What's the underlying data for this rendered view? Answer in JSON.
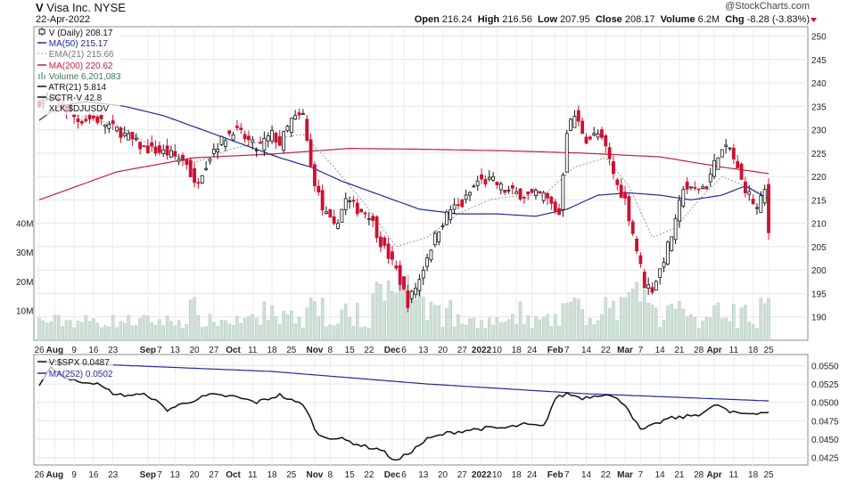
{
  "header": {
    "symbol": "V",
    "name": "Visa Inc.",
    "exchange": "NYSE",
    "date": "22-Apr-2022",
    "watermark": "@StockCharts.com",
    "stats": {
      "open_label": "Open",
      "open": "216.24",
      "high_label": "High",
      "high": "216.56",
      "low_label": "Low",
      "low": "207.95",
      "close_label": "Close",
      "close": "208.17",
      "volume_label": "Volume",
      "volume": "6.2M",
      "chg_label": "Chg",
      "chg": "-8.28 (-3.83%)"
    }
  },
  "colors": {
    "up": "#111111",
    "down": "#cc1133",
    "ma50": "#1f2a9a",
    "ema21": "#999999",
    "ma200": "#c0213a",
    "volume": "#cfe0d6",
    "volume_edge": "#9fbfae"
  },
  "legend": [
    {
      "text": "V (Daily) 208.17",
      "swatch": "candle"
    },
    {
      "text": "MA(50) 215.17",
      "swatch": "ma50"
    },
    {
      "text": "EMA(21) 215.66",
      "swatch": "ema21"
    },
    {
      "text": "MA(200) 220.62",
      "swatch": "ma200"
    },
    {
      "text": "Volume 6,201,083",
      "swatch": "volume"
    },
    {
      "text": "ATR(21) 5.814",
      "swatch": "black"
    },
    {
      "text": "SCTR-V 42.8",
      "swatch": "black"
    },
    {
      "text": "XLK:$DJUSDV",
      "swatch": "none"
    }
  ],
  "lower_legend": [
    {
      "text": "V:$SPX 0.0487",
      "swatch": "black"
    },
    {
      "text": "MA(252) 0.0502",
      "swatch": "ma50"
    }
  ],
  "x_axis_labels": [
    {
      "text": "26",
      "bar": 0,
      "bold": false
    },
    {
      "text": "Aug",
      "bar": 4,
      "bold": true
    },
    {
      "text": "9",
      "bar": 9,
      "bold": false
    },
    {
      "text": "16",
      "bar": 14,
      "bold": false
    },
    {
      "text": "23",
      "bar": 19,
      "bold": false
    },
    {
      "text": "Sep",
      "bar": 28,
      "bold": true
    },
    {
      "text": "7",
      "bar": 31,
      "bold": false
    },
    {
      "text": "13",
      "bar": 35,
      "bold": false
    },
    {
      "text": "20",
      "bar": 40,
      "bold": false
    },
    {
      "text": "27",
      "bar": 45,
      "bold": false
    },
    {
      "text": "Oct",
      "bar": 50,
      "bold": true
    },
    {
      "text": "11",
      "bar": 55,
      "bold": false
    },
    {
      "text": "18",
      "bar": 60,
      "bold": false
    },
    {
      "text": "25",
      "bar": 65,
      "bold": false
    },
    {
      "text": "Nov",
      "bar": 71,
      "bold": true
    },
    {
      "text": "8",
      "bar": 75,
      "bold": false
    },
    {
      "text": "15",
      "bar": 80,
      "bold": false
    },
    {
      "text": "22",
      "bar": 85,
      "bold": false
    },
    {
      "text": "Dec",
      "bar": 91,
      "bold": true
    },
    {
      "text": "6",
      "bar": 94,
      "bold": false
    },
    {
      "text": "13",
      "bar": 99,
      "bold": false
    },
    {
      "text": "20",
      "bar": 104,
      "bold": false
    },
    {
      "text": "27",
      "bar": 109,
      "bold": false
    },
    {
      "text": "2022",
      "bar": 114,
      "bold": true
    },
    {
      "text": "10",
      "bar": 118,
      "bold": false
    },
    {
      "text": "18",
      "bar": 123,
      "bold": false
    },
    {
      "text": "24",
      "bar": 127,
      "bold": false
    },
    {
      "text": "Feb",
      "bar": 133,
      "bold": true
    },
    {
      "text": "7",
      "bar": 136,
      "bold": false
    },
    {
      "text": "14",
      "bar": 141,
      "bold": false
    },
    {
      "text": "22",
      "bar": 146,
      "bold": false
    },
    {
      "text": "Mar",
      "bar": 151,
      "bold": true
    },
    {
      "text": "7",
      "bar": 155,
      "bold": false
    },
    {
      "text": "14",
      "bar": 160,
      "bold": false
    },
    {
      "text": "21",
      "bar": 165,
      "bold": false
    },
    {
      "text": "28",
      "bar": 170,
      "bold": false
    },
    {
      "text": "Apr",
      "bar": 174,
      "bold": true
    },
    {
      "text": "11",
      "bar": 179,
      "bold": false
    },
    {
      "text": "18",
      "bar": 184,
      "bold": false
    },
    {
      "text": "25",
      "bar": 188,
      "bold": false
    }
  ],
  "chart_data": [
    {
      "type": "candlestick",
      "title": "V (Daily) 208.17",
      "ylim": [
        185,
        252
      ],
      "y_ticks": [
        190,
        195,
        200,
        205,
        210,
        215,
        220,
        225,
        230,
        235,
        240,
        245,
        250
      ],
      "volume_ticks": [
        {
          "text": "10M",
          "value": 10
        },
        {
          "text": "20M",
          "value": 20
        },
        {
          "text": "30M",
          "value": 30
        },
        {
          "text": "40M",
          "value": 40
        }
      ],
      "volume_ylim_millions": [
        0,
        54
      ],
      "bars_count": 189,
      "price_anchors": [
        [
          0,
          236
        ],
        [
          4,
          236.5
        ],
        [
          10,
          232
        ],
        [
          14,
          232.5
        ],
        [
          20,
          230
        ],
        [
          27,
          226
        ],
        [
          33,
          225
        ],
        [
          38,
          223
        ],
        [
          40,
          218
        ],
        [
          45,
          226
        ],
        [
          50,
          230
        ],
        [
          52,
          229
        ],
        [
          56,
          226
        ],
        [
          60,
          229
        ],
        [
          62,
          227
        ],
        [
          65,
          232
        ],
        [
          68,
          233
        ],
        [
          70,
          222
        ],
        [
          73,
          213
        ],
        [
          76,
          209
        ],
        [
          79,
          215
        ],
        [
          82,
          213
        ],
        [
          85,
          212
        ],
        [
          88,
          206
        ],
        [
          92,
          200
        ],
        [
          95,
          193
        ],
        [
          98,
          198
        ],
        [
          100,
          203
        ],
        [
          103,
          209
        ],
        [
          106,
          213
        ],
        [
          109,
          214
        ],
        [
          113,
          219
        ],
        [
          117,
          219
        ],
        [
          120,
          217
        ],
        [
          125,
          216
        ],
        [
          130,
          216
        ],
        [
          134,
          212
        ],
        [
          136,
          230
        ],
        [
          138,
          233
        ],
        [
          141,
          228
        ],
        [
          144,
          229
        ],
        [
          146,
          226
        ],
        [
          149,
          218
        ],
        [
          151,
          215
        ],
        [
          153,
          208
        ],
        [
          156,
          197
        ],
        [
          158,
          196
        ],
        [
          160,
          200
        ],
        [
          164,
          210
        ],
        [
          166,
          218
        ],
        [
          168,
          217
        ],
        [
          172,
          218
        ],
        [
          175,
          225
        ],
        [
          178,
          226
        ],
        [
          181,
          219
        ],
        [
          183,
          216
        ],
        [
          185,
          213
        ],
        [
          187,
          217
        ],
        [
          188,
          208.17
        ]
      ],
      "ma50_anchors": [
        [
          0,
          232
        ],
        [
          5,
          235
        ],
        [
          12,
          236
        ],
        [
          22,
          235
        ],
        [
          32,
          233
        ],
        [
          42,
          230
        ],
        [
          52,
          227
        ],
        [
          62,
          224
        ],
        [
          70,
          222
        ],
        [
          78,
          219
        ],
        [
          88,
          216
        ],
        [
          98,
          213
        ],
        [
          108,
          212
        ],
        [
          118,
          212
        ],
        [
          128,
          211.5
        ],
        [
          136,
          213
        ],
        [
          144,
          216
        ],
        [
          152,
          216.5
        ],
        [
          160,
          216
        ],
        [
          168,
          215
        ],
        [
          176,
          216
        ],
        [
          182,
          218
        ],
        [
          188,
          215.17
        ]
      ],
      "ema21_anchors": [
        [
          0,
          234
        ],
        [
          10,
          233
        ],
        [
          20,
          231
        ],
        [
          30,
          226
        ],
        [
          40,
          223
        ],
        [
          50,
          226
        ],
        [
          60,
          228
        ],
        [
          68,
          229
        ],
        [
          76,
          222
        ],
        [
          84,
          214
        ],
        [
          92,
          205
        ],
        [
          100,
          207
        ],
        [
          108,
          212
        ],
        [
          116,
          215
        ],
        [
          124,
          216
        ],
        [
          130,
          216
        ],
        [
          138,
          222
        ],
        [
          146,
          224
        ],
        [
          152,
          218
        ],
        [
          158,
          207
        ],
        [
          164,
          209
        ],
        [
          170,
          215
        ],
        [
          176,
          220
        ],
        [
          182,
          218
        ],
        [
          188,
          215.66
        ]
      ],
      "ma200_anchors": [
        [
          0,
          215
        ],
        [
          20,
          221
        ],
        [
          40,
          224
        ],
        [
          60,
          224.8
        ],
        [
          80,
          226
        ],
        [
          100,
          225.8
        ],
        [
          120,
          225.5
        ],
        [
          140,
          225
        ],
        [
          160,
          224.2
        ],
        [
          176,
          222
        ],
        [
          188,
          220.62
        ]
      ]
    },
    {
      "type": "line",
      "title": "V:$SPX 0.0487",
      "ylim": [
        0.0415,
        0.0565
      ],
      "y_ticks": [
        "0.0425",
        "0.0450",
        "0.0475",
        "0.0500",
        "0.0525",
        "0.0550"
      ],
      "ratio_anchors": [
        [
          0,
          0.0525
        ],
        [
          3,
          0.0548
        ],
        [
          8,
          0.053
        ],
        [
          14,
          0.0527
        ],
        [
          20,
          0.051
        ],
        [
          28,
          0.051
        ],
        [
          33,
          0.049
        ],
        [
          38,
          0.05
        ],
        [
          44,
          0.051
        ],
        [
          50,
          0.0508
        ],
        [
          56,
          0.05
        ],
        [
          62,
          0.051
        ],
        [
          66,
          0.05
        ],
        [
          68,
          0.0498
        ],
        [
          72,
          0.0455
        ],
        [
          78,
          0.045
        ],
        [
          84,
          0.044
        ],
        [
          88,
          0.0436
        ],
        [
          92,
          0.042
        ],
        [
          96,
          0.0434
        ],
        [
          100,
          0.045
        ],
        [
          105,
          0.0458
        ],
        [
          110,
          0.0462
        ],
        [
          115,
          0.0465
        ],
        [
          120,
          0.0465
        ],
        [
          125,
          0.047
        ],
        [
          130,
          0.0467
        ],
        [
          133,
          0.0505
        ],
        [
          136,
          0.0512
        ],
        [
          140,
          0.0506
        ],
        [
          146,
          0.0512
        ],
        [
          151,
          0.0498
        ],
        [
          155,
          0.0462
        ],
        [
          158,
          0.0468
        ],
        [
          162,
          0.0478
        ],
        [
          166,
          0.048
        ],
        [
          170,
          0.0484
        ],
        [
          175,
          0.0497
        ],
        [
          178,
          0.0486
        ],
        [
          182,
          0.0485
        ],
        [
          185,
          0.0486
        ],
        [
          188,
          0.0487
        ]
      ],
      "ma252_anchors": [
        [
          0,
          0.0555
        ],
        [
          60,
          0.0542
        ],
        [
          100,
          0.0525
        ],
        [
          140,
          0.0512
        ],
        [
          188,
          0.0502
        ]
      ]
    }
  ]
}
